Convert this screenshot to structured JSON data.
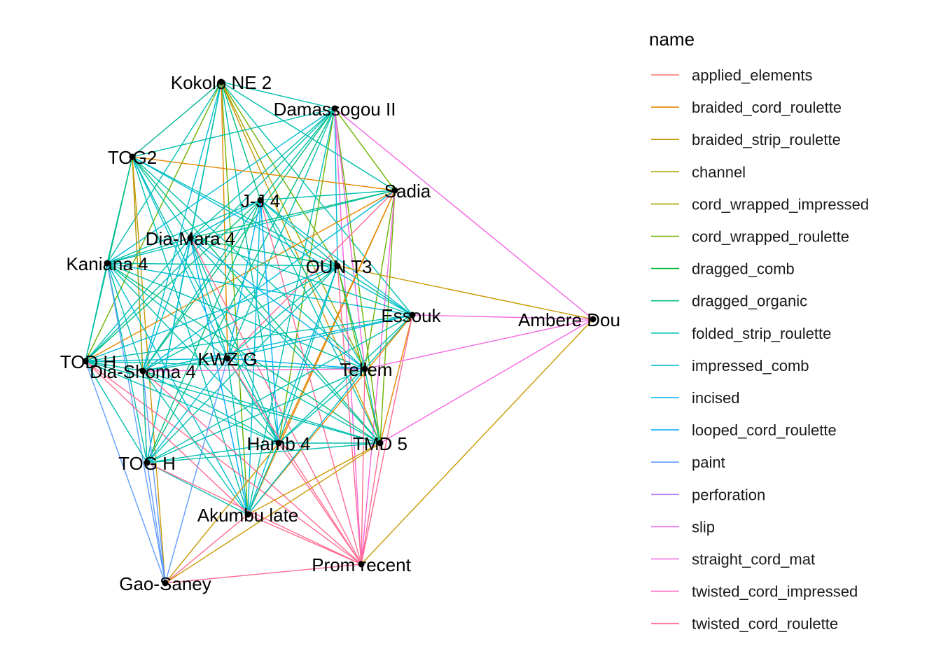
{
  "legend": {
    "title": "name",
    "items": [
      {
        "label": "applied_elements",
        "color": "#F8766D"
      },
      {
        "label": "braided_cord_roulette",
        "color": "#E58700"
      },
      {
        "label": "braided_strip_roulette",
        "color": "#C99800"
      },
      {
        "label": "channel",
        "color": "#A3A500"
      },
      {
        "label": "cord_wrapped_impressed",
        "color": "#A3A500"
      },
      {
        "label": "cord_wrapped_roulette",
        "color": "#6BB100"
      },
      {
        "label": "dragged_comb",
        "color": "#00BA38"
      },
      {
        "label": "dragged_organic",
        "color": "#00BF7D"
      },
      {
        "label": "folded_strip_roulette",
        "color": "#00C0AF"
      },
      {
        "label": "impressed_comb",
        "color": "#00BCD8"
      },
      {
        "label": "incised",
        "color": "#00B0F6"
      },
      {
        "label": "looped_cord_roulette",
        "color": "#00A9FF"
      },
      {
        "label": "paint",
        "color": "#619CFF"
      },
      {
        "label": "perforation",
        "color": "#B983FF"
      },
      {
        "label": "slip",
        "color": "#E76BF3"
      },
      {
        "label": "straight_cord_mat",
        "color": "#F564E3"
      },
      {
        "label": "twisted_cord_impressed",
        "color": "#FF61C3"
      },
      {
        "label": "twisted_cord_roulette",
        "color": "#FF6C91"
      }
    ]
  },
  "nodes": [
    {
      "id": "kokolo",
      "label": "Kokolo NE 2"
    },
    {
      "id": "damassogou",
      "label": "Damassogou II"
    },
    {
      "id": "tog2",
      "label": "TOG2"
    },
    {
      "id": "sadia",
      "label": "Sadia"
    },
    {
      "id": "jj4",
      "label": "J-J 4"
    },
    {
      "id": "diamara",
      "label": "Dia-Mara 4"
    },
    {
      "id": "kaniana",
      "label": "Kaniana 4"
    },
    {
      "id": "ount3",
      "label": "OUN T3"
    },
    {
      "id": "essouk",
      "label": "Essouk"
    },
    {
      "id": "ambere",
      "label": "Ambere Dou"
    },
    {
      "id": "todh",
      "label": "TOD H"
    },
    {
      "id": "kwzg",
      "label": "KWZ G"
    },
    {
      "id": "diashoma",
      "label": "Dia-Shoma 4"
    },
    {
      "id": "tellem",
      "label": "Tellem"
    },
    {
      "id": "hamb4",
      "label": "Hamb 4"
    },
    {
      "id": "tmd5",
      "label": "TMD 5"
    },
    {
      "id": "togh",
      "label": "TOG H"
    },
    {
      "id": "akumbu",
      "label": "Akumbu late"
    },
    {
      "id": "prom",
      "label": "Prom recent"
    },
    {
      "id": "gaosaney",
      "label": "Gao-Saney"
    }
  ],
  "edges": [
    [
      "kokolo",
      "damassogou",
      "folded_strip_roulette"
    ],
    [
      "kokolo",
      "tog2",
      "braided_cord_roulette"
    ],
    [
      "kokolo",
      "tog2",
      "folded_strip_roulette"
    ],
    [
      "kokolo",
      "kaniana",
      "folded_strip_roulette"
    ],
    [
      "kokolo",
      "todh",
      "cord_wrapped_roulette"
    ],
    [
      "kokolo",
      "diashoma",
      "impressed_comb"
    ],
    [
      "kokolo",
      "diamara",
      "folded_strip_roulette"
    ],
    [
      "kokolo",
      "jj4",
      "dragged_organic"
    ],
    [
      "kokolo",
      "ount3",
      "cord_wrapped_roulette"
    ],
    [
      "kokolo",
      "essouk",
      "folded_strip_roulette"
    ],
    [
      "kokolo",
      "tellem",
      "cord_wrapped_impressed"
    ],
    [
      "kokolo",
      "hamb4",
      "folded_strip_roulette"
    ],
    [
      "kokolo",
      "tmd5",
      "braided_strip_roulette"
    ],
    [
      "kokolo",
      "togh",
      "folded_strip_roulette"
    ],
    [
      "kokolo",
      "akumbu",
      "cord_wrapped_roulette"
    ],
    [
      "kokolo",
      "kwzg",
      "braided_cord_roulette"
    ],
    [
      "kokolo",
      "sadia",
      "folded_strip_roulette"
    ],
    [
      "damassogou",
      "tog2",
      "folded_strip_roulette"
    ],
    [
      "damassogou",
      "kaniana",
      "impressed_comb"
    ],
    [
      "damassogou",
      "todh",
      "folded_strip_roulette"
    ],
    [
      "damassogou",
      "diashoma",
      "dragged_organic"
    ],
    [
      "damassogou",
      "diamara",
      "folded_strip_roulette"
    ],
    [
      "damassogou",
      "jj4",
      "folded_strip_roulette"
    ],
    [
      "damassogou",
      "ount3",
      "impressed_comb"
    ],
    [
      "damassogou",
      "hamb4",
      "cord_wrapped_roulette"
    ],
    [
      "damassogou",
      "tmd5",
      "cord_wrapped_roulette"
    ],
    [
      "damassogou",
      "tellem",
      "straight_cord_mat"
    ],
    [
      "damassogou",
      "ambere",
      "straight_cord_mat"
    ],
    [
      "damassogou",
      "prom",
      "straight_cord_mat"
    ],
    [
      "damassogou",
      "akumbu",
      "folded_strip_roulette"
    ],
    [
      "damassogou",
      "togh",
      "dragged_organic"
    ],
    [
      "damassogou",
      "kwzg",
      "folded_strip_roulette"
    ],
    [
      "damassogou",
      "sadia",
      "cord_wrapped_roulette"
    ],
    [
      "tog2",
      "sadia",
      "braided_cord_roulette"
    ],
    [
      "tog2",
      "kaniana",
      "folded_strip_roulette"
    ],
    [
      "tog2",
      "todh",
      "dragged_organic"
    ],
    [
      "tog2",
      "diashoma",
      "folded_strip_roulette"
    ],
    [
      "tog2",
      "diamara",
      "folded_strip_roulette"
    ],
    [
      "tog2",
      "ount3",
      "folded_strip_roulette"
    ],
    [
      "tog2",
      "essouk",
      "impressed_comb"
    ],
    [
      "tog2",
      "tellem",
      "folded_strip_roulette"
    ],
    [
      "tog2",
      "hamb4",
      "folded_strip_roulette"
    ],
    [
      "tog2",
      "tmd5",
      "dragged_organic"
    ],
    [
      "tog2",
      "togh",
      "braided_strip_roulette"
    ],
    [
      "tog2",
      "akumbu",
      "folded_strip_roulette"
    ],
    [
      "tog2",
      "kwzg",
      "impressed_comb"
    ],
    [
      "tog2",
      "gaosaney",
      "braided_strip_roulette"
    ],
    [
      "sadia",
      "kaniana",
      "folded_strip_roulette"
    ],
    [
      "sadia",
      "todh",
      "braided_cord_roulette"
    ],
    [
      "sadia",
      "diamara",
      "dragged_organic"
    ],
    [
      "sadia",
      "jj4",
      "folded_strip_roulette"
    ],
    [
      "sadia",
      "tellem",
      "cord_wrapped_roulette"
    ],
    [
      "sadia",
      "tmd5",
      "cord_wrapped_roulette"
    ],
    [
      "sadia",
      "hamb4",
      "braided_cord_roulette"
    ],
    [
      "sadia",
      "prom",
      "straight_cord_mat"
    ],
    [
      "sadia",
      "akumbu",
      "braided_cord_roulette"
    ],
    [
      "sadia",
      "kwzg",
      "twisted_cord_roulette"
    ],
    [
      "sadia",
      "diashoma",
      "impressed_comb"
    ],
    [
      "jj4",
      "diamara",
      "impressed_comb"
    ],
    [
      "jj4",
      "kaniana",
      "folded_strip_roulette"
    ],
    [
      "jj4",
      "todh",
      "dragged_organic"
    ],
    [
      "jj4",
      "diashoma",
      "folded_strip_roulette"
    ],
    [
      "jj4",
      "ount3",
      "folded_strip_roulette"
    ],
    [
      "jj4",
      "essouk",
      "impressed_comb"
    ],
    [
      "jj4",
      "tellem",
      "folded_strip_roulette"
    ],
    [
      "jj4",
      "hamb4",
      "looped_cord_roulette"
    ],
    [
      "jj4",
      "tmd5",
      "folded_strip_roulette"
    ],
    [
      "jj4",
      "togh",
      "dragged_organic"
    ],
    [
      "jj4",
      "akumbu",
      "impressed_comb"
    ],
    [
      "jj4",
      "kwzg",
      "incised"
    ],
    [
      "jj4",
      "prom",
      "twisted_cord_roulette"
    ],
    [
      "diamara",
      "kaniana",
      "folded_strip_roulette"
    ],
    [
      "diamara",
      "todh",
      "folded_strip_roulette"
    ],
    [
      "diamara",
      "diashoma",
      "impressed_comb"
    ],
    [
      "diamara",
      "ount3",
      "dragged_organic"
    ],
    [
      "diamara",
      "essouk",
      "folded_strip_roulette"
    ],
    [
      "diamara",
      "tellem",
      "incised"
    ],
    [
      "diamara",
      "hamb4",
      "folded_strip_roulette"
    ],
    [
      "diamara",
      "tmd5",
      "folded_strip_roulette"
    ],
    [
      "diamara",
      "togh",
      "impressed_comb"
    ],
    [
      "diamara",
      "akumbu",
      "looped_cord_roulette"
    ],
    [
      "diamara",
      "kwzg",
      "folded_strip_roulette"
    ],
    [
      "diamara",
      "prom",
      "twisted_cord_roulette"
    ],
    [
      "kaniana",
      "todh",
      "folded_strip_roulette"
    ],
    [
      "kaniana",
      "diashoma",
      "folded_strip_roulette"
    ],
    [
      "kaniana",
      "ount3",
      "folded_strip_roulette"
    ],
    [
      "kaniana",
      "essouk",
      "impressed_comb"
    ],
    [
      "kaniana",
      "tellem",
      "folded_strip_roulette"
    ],
    [
      "kaniana",
      "hamb4",
      "folded_strip_roulette"
    ],
    [
      "kaniana",
      "tmd5",
      "dragged_organic"
    ],
    [
      "kaniana",
      "togh",
      "folded_strip_roulette"
    ],
    [
      "kaniana",
      "akumbu",
      "impressed_comb"
    ],
    [
      "kaniana",
      "kwzg",
      "folded_strip_roulette"
    ],
    [
      "kaniana",
      "gaosaney",
      "paint"
    ],
    [
      "ount3",
      "essouk",
      "folded_strip_roulette"
    ],
    [
      "ount3",
      "ambere",
      "braided_strip_roulette"
    ],
    [
      "ount3",
      "todh",
      "impressed_comb"
    ],
    [
      "ount3",
      "diashoma",
      "folded_strip_roulette"
    ],
    [
      "ount3",
      "tellem",
      "dragged_organic"
    ],
    [
      "ount3",
      "hamb4",
      "folded_strip_roulette"
    ],
    [
      "ount3",
      "tmd5",
      "cord_wrapped_roulette"
    ],
    [
      "ount3",
      "togh",
      "folded_strip_roulette"
    ],
    [
      "ount3",
      "akumbu",
      "impressed_comb"
    ],
    [
      "ount3",
      "kwzg",
      "folded_strip_roulette"
    ],
    [
      "ount3",
      "prom",
      "twisted_cord_roulette"
    ],
    [
      "essouk",
      "ambere",
      "straight_cord_mat"
    ],
    [
      "essouk",
      "todh",
      "folded_strip_roulette"
    ],
    [
      "essouk",
      "diashoma",
      "impressed_comb"
    ],
    [
      "essouk",
      "tellem",
      "folded_strip_roulette"
    ],
    [
      "essouk",
      "hamb4",
      "folded_strip_roulette"
    ],
    [
      "essouk",
      "tmd5",
      "braided_cord_roulette"
    ],
    [
      "essouk",
      "togh",
      "folded_strip_roulette"
    ],
    [
      "essouk",
      "akumbu",
      "braided_cord_roulette"
    ],
    [
      "essouk",
      "kwzg",
      "impressed_comb"
    ],
    [
      "essouk",
      "prom",
      "twisted_cord_roulette"
    ],
    [
      "ambere",
      "tellem",
      "straight_cord_mat"
    ],
    [
      "ambere",
      "tmd5",
      "straight_cord_mat"
    ],
    [
      "ambere",
      "prom",
      "braided_strip_roulette"
    ],
    [
      "todh",
      "diashoma",
      "folded_strip_roulette"
    ],
    [
      "todh",
      "kwzg",
      "impressed_comb"
    ],
    [
      "todh",
      "tellem",
      "folded_strip_roulette"
    ],
    [
      "todh",
      "hamb4",
      "folded_strip_roulette"
    ],
    [
      "todh",
      "tmd5",
      "folded_strip_roulette"
    ],
    [
      "todh",
      "togh",
      "folded_strip_roulette"
    ],
    [
      "todh",
      "akumbu",
      "twisted_cord_roulette"
    ],
    [
      "todh",
      "gaosaney",
      "paint"
    ],
    [
      "todh",
      "prom",
      "twisted_cord_roulette"
    ],
    [
      "diashoma",
      "kwzg",
      "folded_strip_roulette"
    ],
    [
      "diashoma",
      "tellem",
      "straight_cord_mat"
    ],
    [
      "diashoma",
      "hamb4",
      "folded_strip_roulette"
    ],
    [
      "diashoma",
      "tmd5",
      "folded_strip_roulette"
    ],
    [
      "diashoma",
      "togh",
      "folded_strip_roulette"
    ],
    [
      "diashoma",
      "akumbu",
      "folded_strip_roulette"
    ],
    [
      "diashoma",
      "gaosaney",
      "paint"
    ],
    [
      "diashoma",
      "prom",
      "twisted_cord_roulette"
    ],
    [
      "kwzg",
      "tellem",
      "incised"
    ],
    [
      "kwzg",
      "hamb4",
      "folded_strip_roulette"
    ],
    [
      "kwzg",
      "tmd5",
      "folded_strip_roulette"
    ],
    [
      "kwzg",
      "togh",
      "impressed_comb"
    ],
    [
      "kwzg",
      "akumbu",
      "folded_strip_roulette"
    ],
    [
      "kwzg",
      "prom",
      "twisted_cord_roulette"
    ],
    [
      "kwzg",
      "gaosaney",
      "paint"
    ],
    [
      "tellem",
      "hamb4",
      "folded_strip_roulette"
    ],
    [
      "tellem",
      "tmd5",
      "folded_strip_roulette"
    ],
    [
      "tellem",
      "togh",
      "folded_strip_roulette"
    ],
    [
      "tellem",
      "akumbu",
      "impressed_comb"
    ],
    [
      "tellem",
      "prom",
      "twisted_cord_roulette"
    ],
    [
      "hamb4",
      "tmd5",
      "folded_strip_roulette"
    ],
    [
      "hamb4",
      "togh",
      "folded_strip_roulette"
    ],
    [
      "hamb4",
      "akumbu",
      "folded_strip_roulette"
    ],
    [
      "hamb4",
      "prom",
      "twisted_cord_roulette"
    ],
    [
      "hamb4",
      "gaosaney",
      "braided_strip_roulette"
    ],
    [
      "tmd5",
      "togh",
      "folded_strip_roulette"
    ],
    [
      "tmd5",
      "akumbu",
      "braided_strip_roulette"
    ],
    [
      "tmd5",
      "prom",
      "twisted_cord_roulette"
    ],
    [
      "tmd5",
      "gaosaney",
      "braided_strip_roulette"
    ],
    [
      "togh",
      "akumbu",
      "folded_strip_roulette"
    ],
    [
      "togh",
      "gaosaney",
      "paint"
    ],
    [
      "togh",
      "prom",
      "twisted_cord_roulette"
    ],
    [
      "akumbu",
      "prom",
      "twisted_cord_roulette"
    ],
    [
      "akumbu",
      "gaosaney",
      "twisted_cord_roulette"
    ],
    [
      "prom",
      "gaosaney",
      "twisted_cord_roulette"
    ]
  ]
}
